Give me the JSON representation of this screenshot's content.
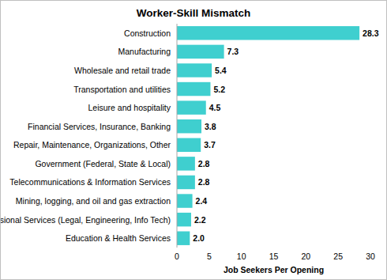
{
  "chart_data": {
    "type": "bar",
    "title": "Worker-Skill Mismatch",
    "orientation": "horizontal",
    "categories": [
      "Construction",
      "Manufacturing",
      "Wholesale and retail trade",
      "Transportation and utilities",
      "Leisure and hospitality",
      "Financial Services, Insurance, Banking",
      "Repair, Maintenance, Organizations, Other",
      "Government (Federal, State & Local)",
      "Telecommunications & Information Services",
      "Mining, logging, and oil and gas extraction",
      "Professional Services (Legal, Engineering, Info Tech)",
      "Education & Health Services"
    ],
    "values": [
      28.3,
      7.3,
      5.4,
      5.2,
      4.5,
      3.8,
      3.7,
      2.8,
      2.8,
      2.4,
      2.2,
      2.0
    ],
    "value_labels": [
      "28.3",
      "7.3",
      "5.4",
      "5.2",
      "4.5",
      "3.8",
      "3.7",
      "2.8",
      "2.8",
      "2.4",
      "2.2",
      "2.0"
    ],
    "data_labels": true,
    "color": "#3fcfcf",
    "xlabel": "Job Seekers Per Opening",
    "xlim": [
      0,
      30
    ],
    "xticks": [
      0,
      5,
      10,
      15,
      20,
      25,
      30
    ],
    "grid": false
  }
}
